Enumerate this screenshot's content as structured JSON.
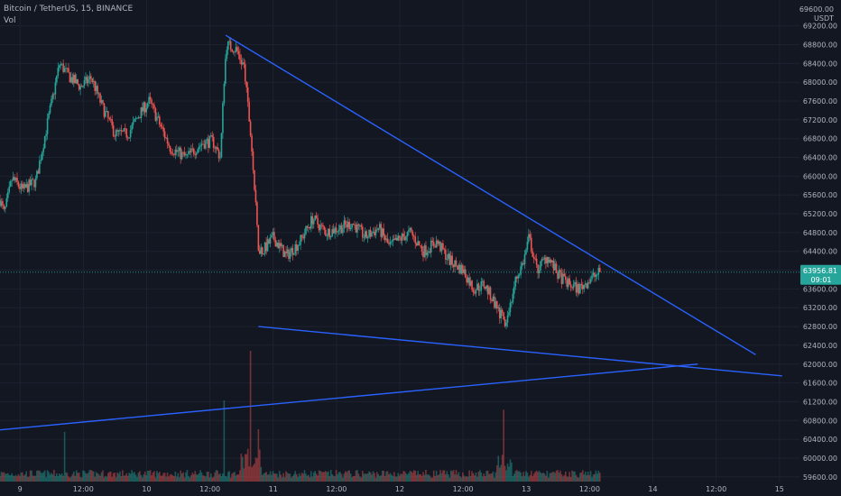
{
  "legend": {
    "symbol": "Bitcoin / TetherUS, 15, BINANCE",
    "volume_label": "Vol"
  },
  "price_axis": {
    "currency_top": "69600.00",
    "currency": "USDT"
  },
  "current_price": {
    "value": "63956.81",
    "countdown": "09:01",
    "color": "#26a69a"
  },
  "colors": {
    "background": "#131722",
    "up": "#26a69a",
    "down": "#ef5350",
    "trendline": "#2962ff",
    "axis_text": "#b2b5be"
  },
  "chart_data": {
    "type": "candlestick",
    "title": "Bitcoin / TetherUS, 15, BINANCE",
    "y_unit": "USDT",
    "y_ticks": [
      59600,
      60000,
      60400,
      60800,
      61200,
      61600,
      62000,
      62400,
      62800,
      63200,
      63600,
      64000,
      64400,
      64800,
      65200,
      65600,
      66000,
      66400,
      66800,
      67200,
      67600,
      68000,
      68400,
      68800,
      69200
    ],
    "ylim": [
      59500,
      69750
    ],
    "x_tick_labels": [
      "9",
      "12:00",
      "10",
      "12:00",
      "11",
      "12:00",
      "12",
      "12:00",
      "13",
      "12:00",
      "14",
      "12:00",
      "15"
    ],
    "x_ticks_hours": [
      0,
      12,
      24,
      36,
      48,
      60,
      72,
      84,
      96,
      108,
      120,
      132,
      144
    ],
    "xlim_hours": [
      -3.8,
      147.8
    ],
    "last_price": 63956.81,
    "price_path": [
      {
        "t": -3.8,
        "p": 65500
      },
      {
        "t": -3.0,
        "p": 65200
      },
      {
        "t": -1.5,
        "p": 65950
      },
      {
        "t": 0.5,
        "p": 65700
      },
      {
        "t": 3.0,
        "p": 65900
      },
      {
        "t": 5.5,
        "p": 67300
      },
      {
        "t": 7.5,
        "p": 68400
      },
      {
        "t": 9.5,
        "p": 68100
      },
      {
        "t": 11.5,
        "p": 67900
      },
      {
        "t": 13.5,
        "p": 68100
      },
      {
        "t": 15.5,
        "p": 67500
      },
      {
        "t": 18.0,
        "p": 66900
      },
      {
        "t": 20.5,
        "p": 66900
      },
      {
        "t": 22.5,
        "p": 67300
      },
      {
        "t": 24.5,
        "p": 67600
      },
      {
        "t": 26.5,
        "p": 67100
      },
      {
        "t": 28.5,
        "p": 66600
      },
      {
        "t": 31.5,
        "p": 66400
      },
      {
        "t": 34.5,
        "p": 66700
      },
      {
        "t": 36.5,
        "p": 66750
      },
      {
        "t": 38.0,
        "p": 66400
      },
      {
        "t": 38.8,
        "p": 68300
      },
      {
        "t": 39.2,
        "p": 68800
      },
      {
        "t": 41.0,
        "p": 68700
      },
      {
        "t": 42.5,
        "p": 68300
      },
      {
        "t": 43.8,
        "p": 66800
      },
      {
        "t": 45.2,
        "p": 64500
      },
      {
        "t": 46.0,
        "p": 64400
      },
      {
        "t": 48.0,
        "p": 64700
      },
      {
        "t": 50.5,
        "p": 64300
      },
      {
        "t": 53.0,
        "p": 64600
      },
      {
        "t": 55.5,
        "p": 65100
      },
      {
        "t": 58.0,
        "p": 64800
      },
      {
        "t": 60.5,
        "p": 64900
      },
      {
        "t": 63.0,
        "p": 65000
      },
      {
        "t": 65.5,
        "p": 64700
      },
      {
        "t": 68.0,
        "p": 64900
      },
      {
        "t": 70.0,
        "p": 64500
      },
      {
        "t": 72.5,
        "p": 64700
      },
      {
        "t": 74.0,
        "p": 64800
      },
      {
        "t": 76.5,
        "p": 64400
      },
      {
        "t": 79.0,
        "p": 64600
      },
      {
        "t": 81.5,
        "p": 64200
      },
      {
        "t": 84.0,
        "p": 64000
      },
      {
        "t": 86.0,
        "p": 63600
      },
      {
        "t": 88.0,
        "p": 63700
      },
      {
        "t": 90.0,
        "p": 63300
      },
      {
        "t": 91.8,
        "p": 62900
      },
      {
        "t": 92.6,
        "p": 63100
      },
      {
        "t": 94.0,
        "p": 63800
      },
      {
        "t": 95.5,
        "p": 64200
      },
      {
        "t": 96.5,
        "p": 64700
      },
      {
        "t": 98.0,
        "p": 64000
      },
      {
        "t": 100.0,
        "p": 64300
      },
      {
        "t": 102.0,
        "p": 63900
      },
      {
        "t": 104.0,
        "p": 63700
      },
      {
        "t": 106.0,
        "p": 63600
      },
      {
        "t": 108.0,
        "p": 63800
      },
      {
        "t": 110.0,
        "p": 63957
      }
    ],
    "trendlines": [
      {
        "name": "upper",
        "from": {
          "t": 39.0,
          "p": 69000
        },
        "to": {
          "t": 139.5,
          "p": 62200
        }
      },
      {
        "name": "lower",
        "from": {
          "t": 45.2,
          "p": 62800
        },
        "to": {
          "t": 144.5,
          "p": 61750
        }
      },
      {
        "name": "support",
        "from": {
          "t": -3.8,
          "p": 60600
        },
        "to": {
          "t": 128.5,
          "p": 62000
        }
      }
    ],
    "volume_spikes": [
      {
        "t": 43.8,
        "v": 1.0
      },
      {
        "t": 38.8,
        "v": 0.62
      },
      {
        "t": 91.8,
        "v": 0.55
      },
      {
        "t": 8.5,
        "v": 0.38
      },
      {
        "t": 45.2,
        "v": 0.4
      }
    ]
  }
}
